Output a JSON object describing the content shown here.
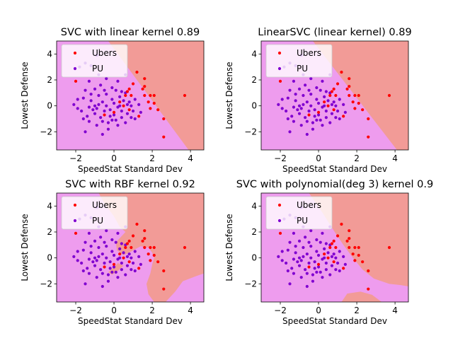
{
  "chart_data": [
    {
      "type": "scatter",
      "title": "SVC with linear kernel 0.89",
      "xlabel": "SpeedStat Standard Dev",
      "ylabel": "Lowest Defense",
      "xlim": [
        -3.0,
        4.7
      ],
      "ylim": [
        -3.4,
        5.0
      ],
      "xticks": [
        -2,
        0,
        2,
        4
      ],
      "yticks": [
        -2,
        0,
        2,
        4
      ],
      "legend": "top-left",
      "boundary": {
        "kind": "linear",
        "points": [
          [
            -0.3,
            5.0
          ],
          [
            3.9,
            -3.4
          ]
        ]
      },
      "series": [
        {
          "name": "Ubers"
        },
        {
          "name": "PU"
        }
      ]
    },
    {
      "type": "scatter",
      "title": "LinearSVC (linear kernel) 0.89",
      "xlabel": "SpeedStat Standard Dev",
      "ylabel": "Lowest Defense",
      "xlim": [
        -3.0,
        4.7
      ],
      "ylim": [
        -3.4,
        5.0
      ],
      "xticks": [
        -2,
        0,
        2,
        4
      ],
      "yticks": [
        -2,
        0,
        2,
        4
      ],
      "legend": "top-left",
      "boundary": {
        "kind": "linear",
        "points": [
          [
            -0.3,
            5.0
          ],
          [
            4.1,
            -3.4
          ]
        ]
      },
      "series": [
        {
          "name": "Ubers"
        },
        {
          "name": "PU"
        }
      ]
    },
    {
      "type": "scatter",
      "title": "SVC with RBF kernel 0.92",
      "xlabel": "SpeedStat Standard Dev",
      "ylabel": "Lowest Defense",
      "xlim": [
        -3.0,
        4.7
      ],
      "ylim": [
        -3.4,
        5.0
      ],
      "xticks": [
        -2,
        0,
        2,
        4
      ],
      "yticks": [
        -2,
        0,
        2,
        4
      ],
      "legend": "top-left",
      "boundary": {
        "kind": "rbf"
      },
      "series": [
        {
          "name": "Ubers"
        },
        {
          "name": "PU"
        }
      ]
    },
    {
      "type": "scatter",
      "title": "SVC with polynomial(deg 3) kernel 0.9",
      "xlabel": "SpeedStat Standard Dev",
      "ylabel": "Lowest Defense",
      "xlim": [
        -3.0,
        4.7
      ],
      "ylim": [
        -3.4,
        5.0
      ],
      "xticks": [
        -2,
        0,
        2,
        4
      ],
      "yticks": [
        -2,
        0,
        2,
        4
      ],
      "legend": "top-left",
      "boundary": {
        "kind": "poly"
      },
      "series": [
        {
          "name": "Ubers"
        },
        {
          "name": "PU"
        }
      ]
    }
  ],
  "shared_points": {
    "ubers": [
      [
        -2.0,
        1.9
      ],
      [
        1.2,
        2.6
      ],
      [
        1.6,
        2.1
      ],
      [
        1.0,
        1.7
      ],
      [
        0.8,
        1.3
      ],
      [
        0.7,
        1.1
      ],
      [
        1.5,
        1.3
      ],
      [
        0.9,
        0.8
      ],
      [
        1.6,
        0.8
      ],
      [
        1.9,
        0.8
      ],
      [
        2.1,
        0.8
      ],
      [
        1.8,
        0.3
      ],
      [
        2.1,
        0.2
      ],
      [
        1.9,
        -0.2
      ],
      [
        2.3,
        -0.3
      ],
      [
        0.6,
        0.8
      ],
      [
        0.3,
        0.3
      ],
      [
        0.5,
        0.0
      ],
      [
        0.8,
        -0.3
      ],
      [
        0.0,
        -0.5
      ],
      [
        -0.5,
        -0.7
      ],
      [
        1.3,
        -0.8
      ],
      [
        2.6,
        -1.0
      ],
      [
        2.6,
        -2.4
      ],
      [
        3.7,
        0.8
      ],
      [
        1.6,
        1.5
      ]
    ],
    "pu": [
      [
        -1.8,
        3.0
      ],
      [
        -1.5,
        3.3
      ],
      [
        -0.9,
        3.9
      ],
      [
        -1.2,
        3.1
      ],
      [
        -0.8,
        2.4
      ],
      [
        -1.3,
        1.9
      ],
      [
        -1.0,
        1.3
      ],
      [
        -0.4,
        2.1
      ],
      [
        0.2,
        1.9
      ],
      [
        0.6,
        2.4
      ],
      [
        -0.7,
        1.6
      ],
      [
        -0.1,
        1.4
      ],
      [
        0.4,
        1.1
      ],
      [
        -1.5,
        1.2
      ],
      [
        -1.9,
        0.5
      ],
      [
        -2.1,
        0.1
      ],
      [
        -1.6,
        0.6
      ],
      [
        -1.2,
        0.4
      ],
      [
        -1.3,
        -0.1
      ],
      [
        -0.9,
        -0.2
      ],
      [
        -0.6,
        0.3
      ],
      [
        -0.4,
        0.0
      ],
      [
        -0.1,
        0.5
      ],
      [
        0.2,
        -0.1
      ],
      [
        0.5,
        0.4
      ],
      [
        0.9,
        0.0
      ],
      [
        1.1,
        0.5
      ],
      [
        1.3,
        0.1
      ],
      [
        1.0,
        -0.4
      ],
      [
        0.7,
        -0.6
      ],
      [
        0.4,
        -0.9
      ],
      [
        0.1,
        -1.1
      ],
      [
        -0.3,
        -1.3
      ],
      [
        -0.7,
        -0.9
      ],
      [
        -1.0,
        -0.6
      ],
      [
        -1.4,
        -0.8
      ],
      [
        -1.7,
        -0.4
      ],
      [
        -1.5,
        -2.0
      ],
      [
        -1.3,
        -1.2
      ],
      [
        -0.9,
        -1.5
      ],
      [
        -0.5,
        -0.4
      ],
      [
        -0.2,
        -0.8
      ],
      [
        0.0,
        0.2
      ],
      [
        0.3,
        0.7
      ],
      [
        0.6,
        1.0
      ],
      [
        0.8,
        0.3
      ],
      [
        -0.8,
        0.8
      ],
      [
        -1.1,
        -0.3
      ],
      [
        -0.6,
        -1.2
      ],
      [
        0.2,
        -1.5
      ],
      [
        0.6,
        -1.3
      ],
      [
        1.1,
        -1.0
      ],
      [
        -0.3,
        -1.8
      ],
      [
        -0.6,
        -2.2
      ],
      [
        -0.1,
        -1.1
      ],
      [
        0.9,
        -0.9
      ],
      [
        1.4,
        -0.5
      ],
      [
        -1.9,
        -0.2
      ],
      [
        -0.4,
        0.9
      ],
      [
        0.1,
        1.2
      ],
      [
        -0.2,
        -0.3
      ],
      [
        0.4,
        -0.4
      ],
      [
        0.7,
        0.1
      ],
      [
        -0.8,
        0.1
      ],
      [
        -1.2,
        0.9
      ],
      [
        -0.5,
        1.2
      ],
      [
        0.0,
        -0.7
      ],
      [
        0.3,
        0.0
      ],
      [
        -1.6,
        -1.0
      ],
      [
        -1.0,
        0.0
      ]
    ]
  },
  "colors": {
    "ubers_region": "#f29b97",
    "pu_region": "#ee9cee",
    "ubers_point": "#ff0000",
    "pu_point": "#8000d0"
  }
}
